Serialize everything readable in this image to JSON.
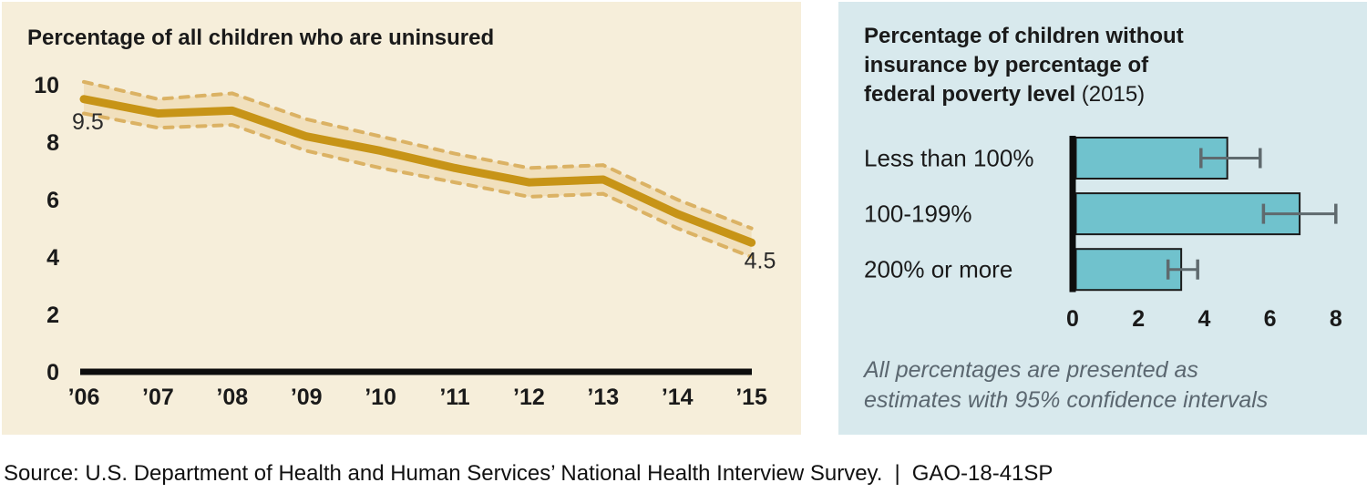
{
  "left_panel": {
    "background": "#f6eeda",
    "title": "Percentage of all children who are uninsured"
  },
  "right_panel": {
    "background": "#d8e9ed",
    "title_lines": [
      "Percentage of children without",
      "insurance by percentage of",
      "federal poverty level"
    ],
    "title_year": "(2015)",
    "note_line1": "All percentages are presented as",
    "note_line2": "estimates with 95% confidence intervals"
  },
  "footer": {
    "source": "Source: U.S. Department of Health and Human Services’ National Health Interview Survey.",
    "separator": "|",
    "report_id": "GAO-18-41SP"
  },
  "colors": {
    "cream_bg": "#f6eeda",
    "blue_bg": "#d8e9ed",
    "gold_line": "#c79417",
    "gold_dash": "#dbb264",
    "band_fill": "#f1e0bd",
    "bar_teal": "#70c2cd",
    "bar_outline": "#1c1c1c",
    "error_gray": "#5f6a6e",
    "axis_black": "#0d0d0d",
    "text_dark": "#1a1a1a",
    "note_gray": "#5b6770"
  },
  "chart_data": [
    {
      "type": "line",
      "title": "Percentage of all children who are uninsured",
      "categories": [
        "’06",
        "’07",
        "’08",
        "’09",
        "’10",
        "’11",
        "’12",
        "’13",
        "’14",
        "’15"
      ],
      "values": [
        9.5,
        9.0,
        9.1,
        8.2,
        7.7,
        7.1,
        6.6,
        6.7,
        5.5,
        4.5
      ],
      "ci_upper": [
        10.1,
        9.5,
        9.7,
        8.8,
        8.2,
        7.6,
        7.1,
        7.2,
        6.0,
        5.0
      ],
      "ci_lower": [
        9.0,
        8.5,
        8.6,
        7.7,
        7.1,
        6.6,
        6.1,
        6.2,
        5.0,
        4.0
      ],
      "first_point_label": "9.5",
      "last_point_label": "4.5",
      "yticks": [
        0,
        2,
        4,
        6,
        8,
        10
      ],
      "ylim": [
        0,
        10
      ],
      "grid": false,
      "band_style": "dashed 95% confidence interval band"
    },
    {
      "type": "bar",
      "orientation": "horizontal",
      "title": "Percentage of children without insurance by percentage of federal poverty level (2015)",
      "categories": [
        "Less than 100%",
        "100-199%",
        "200% or more"
      ],
      "values": [
        4.7,
        6.9,
        3.3
      ],
      "ci": [
        [
          3.9,
          5.7
        ],
        [
          5.8,
          8.0
        ],
        [
          2.9,
          3.8
        ]
      ],
      "xticks": [
        0,
        2,
        4,
        6,
        8
      ],
      "xlim": [
        0,
        8
      ],
      "grid": false,
      "note": "All percentages are presented as estimates with 95% confidence intervals"
    }
  ]
}
